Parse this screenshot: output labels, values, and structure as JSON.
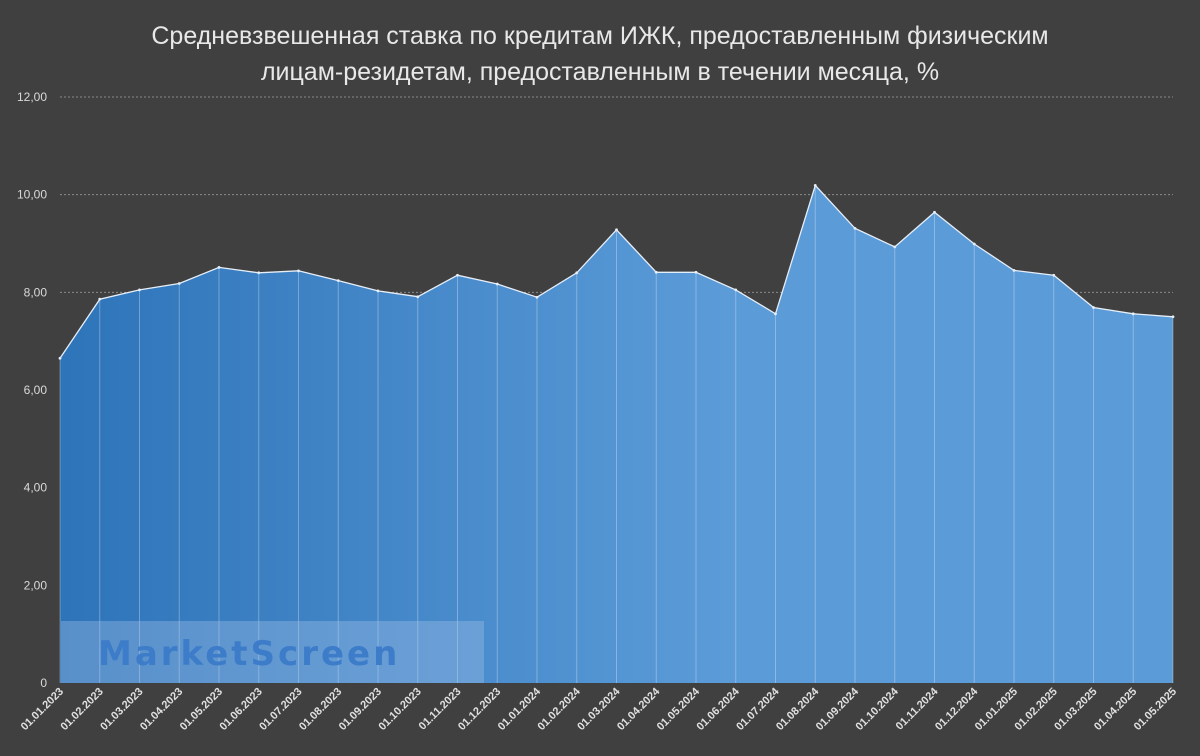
{
  "chart_data": {
    "type": "area",
    "title_line1": "Средневзвешенная ставка по кредитам ИЖК, предоставленным физическим",
    "title_line2": "лицам-резидетам, предоставленным в течении месяца, %",
    "x": [
      "01.01.2023",
      "01.02.2023",
      "01.03.2023",
      "01.04.2023",
      "01.05.2023",
      "01.06.2023",
      "01.07.2023",
      "01.08.2023",
      "01.09.2023",
      "01.10.2023",
      "01.11.2023",
      "01.12.2023",
      "01.01.2024",
      "01.02.2024",
      "01.03.2024",
      "01.04.2024",
      "01.05.2024",
      "01.06.2024",
      "01.07.2024",
      "01.08.2024",
      "01.09.2024",
      "01.10.2024",
      "01.11.2024",
      "01.12.2024",
      "01.01.2025",
      "01.02.2025",
      "01.03.2025",
      "01.04.2025",
      "01.05.2025"
    ],
    "values": [
      6.65,
      7.86,
      8.05,
      8.18,
      8.51,
      8.4,
      8.44,
      8.24,
      8.03,
      7.91,
      8.35,
      8.17,
      7.9,
      8.4,
      9.28,
      8.41,
      8.41,
      8.05,
      7.56,
      10.19,
      9.31,
      8.93,
      9.64,
      8.99,
      8.45,
      8.35,
      7.69,
      7.56,
      7.5
    ],
    "y_ticks": [
      "0",
      "2,00",
      "4,00",
      "6,00",
      "8,00",
      "10,00",
      "12,00"
    ],
    "ylim": [
      0,
      12
    ],
    "grid": "horizontal dotted",
    "colors": {
      "fill_start": "#2e74b9",
      "fill_end": "#5b9bd8",
      "line": "#e6eef8",
      "background": "#404040"
    }
  },
  "watermark": "MarketScreen"
}
